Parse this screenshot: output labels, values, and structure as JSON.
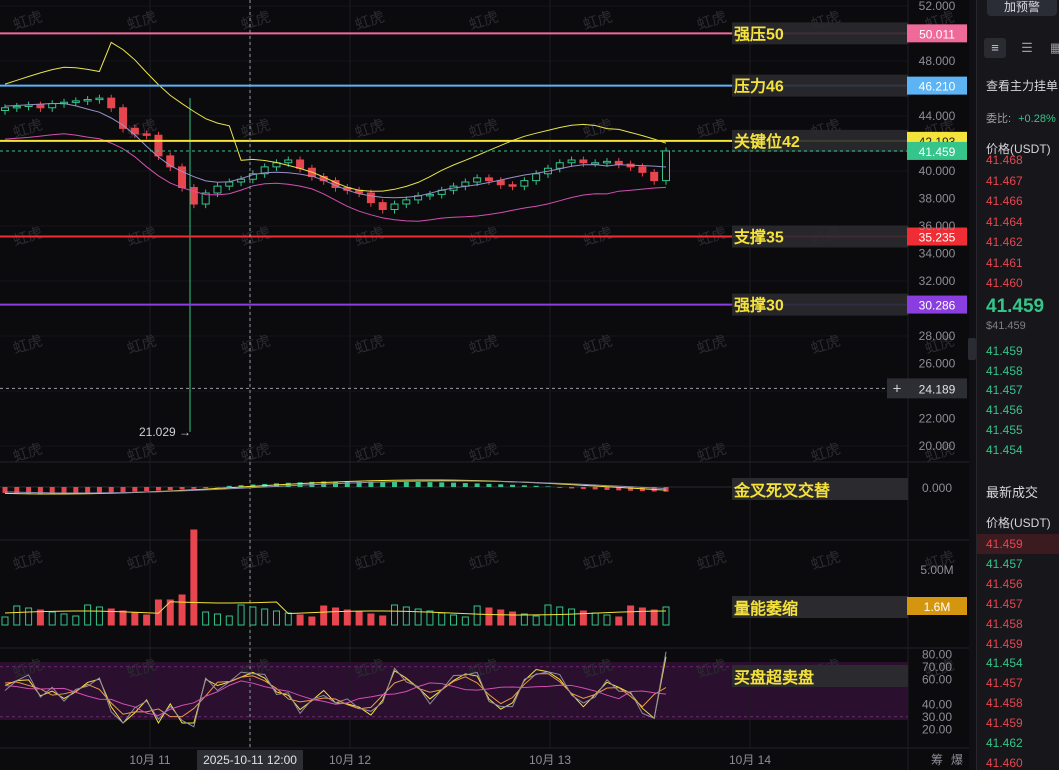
{
  "price_axis": {
    "ticks": [
      "52.000",
      "48.000",
      "44.000",
      "40.000",
      "38.000",
      "36.000",
      "34.000",
      "32.000",
      "28.000",
      "26.000",
      "22.000",
      "20.000"
    ],
    "partial_tick": "42.193",
    "crosshair_value": "24.189",
    "last_price": "41.459",
    "low_marker": "21.029"
  },
  "levels": [
    {
      "label": "强压50",
      "value": "50.011",
      "color": "#f06a99"
    },
    {
      "label": "压力46",
      "value": "46.210",
      "color": "#5cb4f4"
    },
    {
      "label": "关键位42",
      "value": "42.193",
      "color": "#f4e33a"
    },
    {
      "label": "支撑35",
      "value": "35.235",
      "color": "#ef2d35"
    },
    {
      "label": "强撑30",
      "value": "30.286",
      "color": "#8b3ee0"
    }
  ],
  "macd": {
    "label": "金叉死叉交替",
    "tick": "0.000"
  },
  "volume": {
    "label": "量能萎缩",
    "tick": "5.00M",
    "badge": "1.6M"
  },
  "rsi": {
    "label": "买盘超卖盘",
    "ticks": [
      "80.00",
      "70.00",
      "60.00",
      "40.00",
      "30.00",
      "20.00"
    ]
  },
  "time_axis": {
    "labels": [
      "10月 11",
      "10月 12",
      "10月 13",
      "10月 14"
    ],
    "crosshair_time": "2025-10-11 12:00",
    "right_controls": [
      "筹",
      "爆"
    ]
  },
  "watermark": "虹虎",
  "colors": {
    "up": "#35c48a",
    "down": "#e8464f",
    "bg": "#0b0b0e"
  },
  "chart_data": [
    {
      "type": "candlestick",
      "panel": "price",
      "y_unit": "USDT",
      "x_labels": [
        "10月 11",
        "10月 12",
        "10月 13",
        "10月 14"
      ],
      "lines": [
        {
          "label": "强压50",
          "value": 50.011
        },
        {
          "label": "压力46",
          "value": 46.21
        },
        {
          "label": "关键位42",
          "value": 42.193
        },
        {
          "label": "支撑35",
          "value": 35.235
        },
        {
          "label": "强撑30",
          "value": 30.286
        }
      ],
      "close_approx": [
        44.6,
        44.7,
        44.8,
        44.6,
        44.9,
        45.0,
        45.1,
        45.2,
        45.3,
        44.6,
        43.1,
        42.7,
        42.6,
        41.1,
        40.3,
        38.8,
        37.6,
        38.4,
        38.9,
        39.2,
        39.4,
        39.8,
        40.3,
        40.6,
        40.8,
        40.2,
        39.6,
        39.3,
        38.8,
        38.6,
        38.4,
        37.7,
        37.2,
        37.6,
        37.9,
        38.2,
        38.3,
        38.6,
        38.9,
        39.2,
        39.5,
        39.3,
        39.0,
        38.9,
        39.3,
        39.8,
        40.2,
        40.6,
        40.8,
        40.6,
        40.6,
        40.7,
        40.5,
        40.3,
        39.9,
        39.3,
        41.46
      ],
      "low_wick": 21.029
    },
    {
      "type": "bar",
      "panel": "macd",
      "zero": 0.0
    },
    {
      "type": "bar",
      "panel": "volume",
      "max_tick": "5.00M",
      "last_value": "1.6M"
    },
    {
      "type": "line",
      "panel": "rsi",
      "bands": [
        30,
        70
      ],
      "ticks": [
        80,
        70,
        60,
        40,
        30,
        20
      ]
    }
  ],
  "side_panel": {
    "alert_button": "加预警",
    "tabs": [
      "order-book",
      "list",
      "chart"
    ],
    "main_order": "查看主力挂单",
    "ratio_label": "委比:",
    "ratio_value": "+0.28%",
    "price_header": "价格(USDT)",
    "asks": [
      "41.468",
      "41.467",
      "41.466",
      "41.464",
      "41.462",
      "41.461",
      "41.460"
    ],
    "last_price": "41.459",
    "last_price_usd": "$41.459",
    "bids": [
      "41.459",
      "41.458",
      "41.457",
      "41.456",
      "41.455",
      "41.454"
    ],
    "trades_title": "最新成交",
    "trades_header": "价格(USDT)",
    "trades": [
      {
        "p": "41.459",
        "s": "down"
      },
      {
        "p": "41.457",
        "s": "up"
      },
      {
        "p": "41.456",
        "s": "down"
      },
      {
        "p": "41.457",
        "s": "down"
      },
      {
        "p": "41.458",
        "s": "down"
      },
      {
        "p": "41.459",
        "s": "down"
      },
      {
        "p": "41.454",
        "s": "up"
      },
      {
        "p": "41.457",
        "s": "down"
      },
      {
        "p": "41.458",
        "s": "down"
      },
      {
        "p": "41.459",
        "s": "down"
      },
      {
        "p": "41.462",
        "s": "up"
      },
      {
        "p": "41.460",
        "s": "down"
      }
    ]
  }
}
